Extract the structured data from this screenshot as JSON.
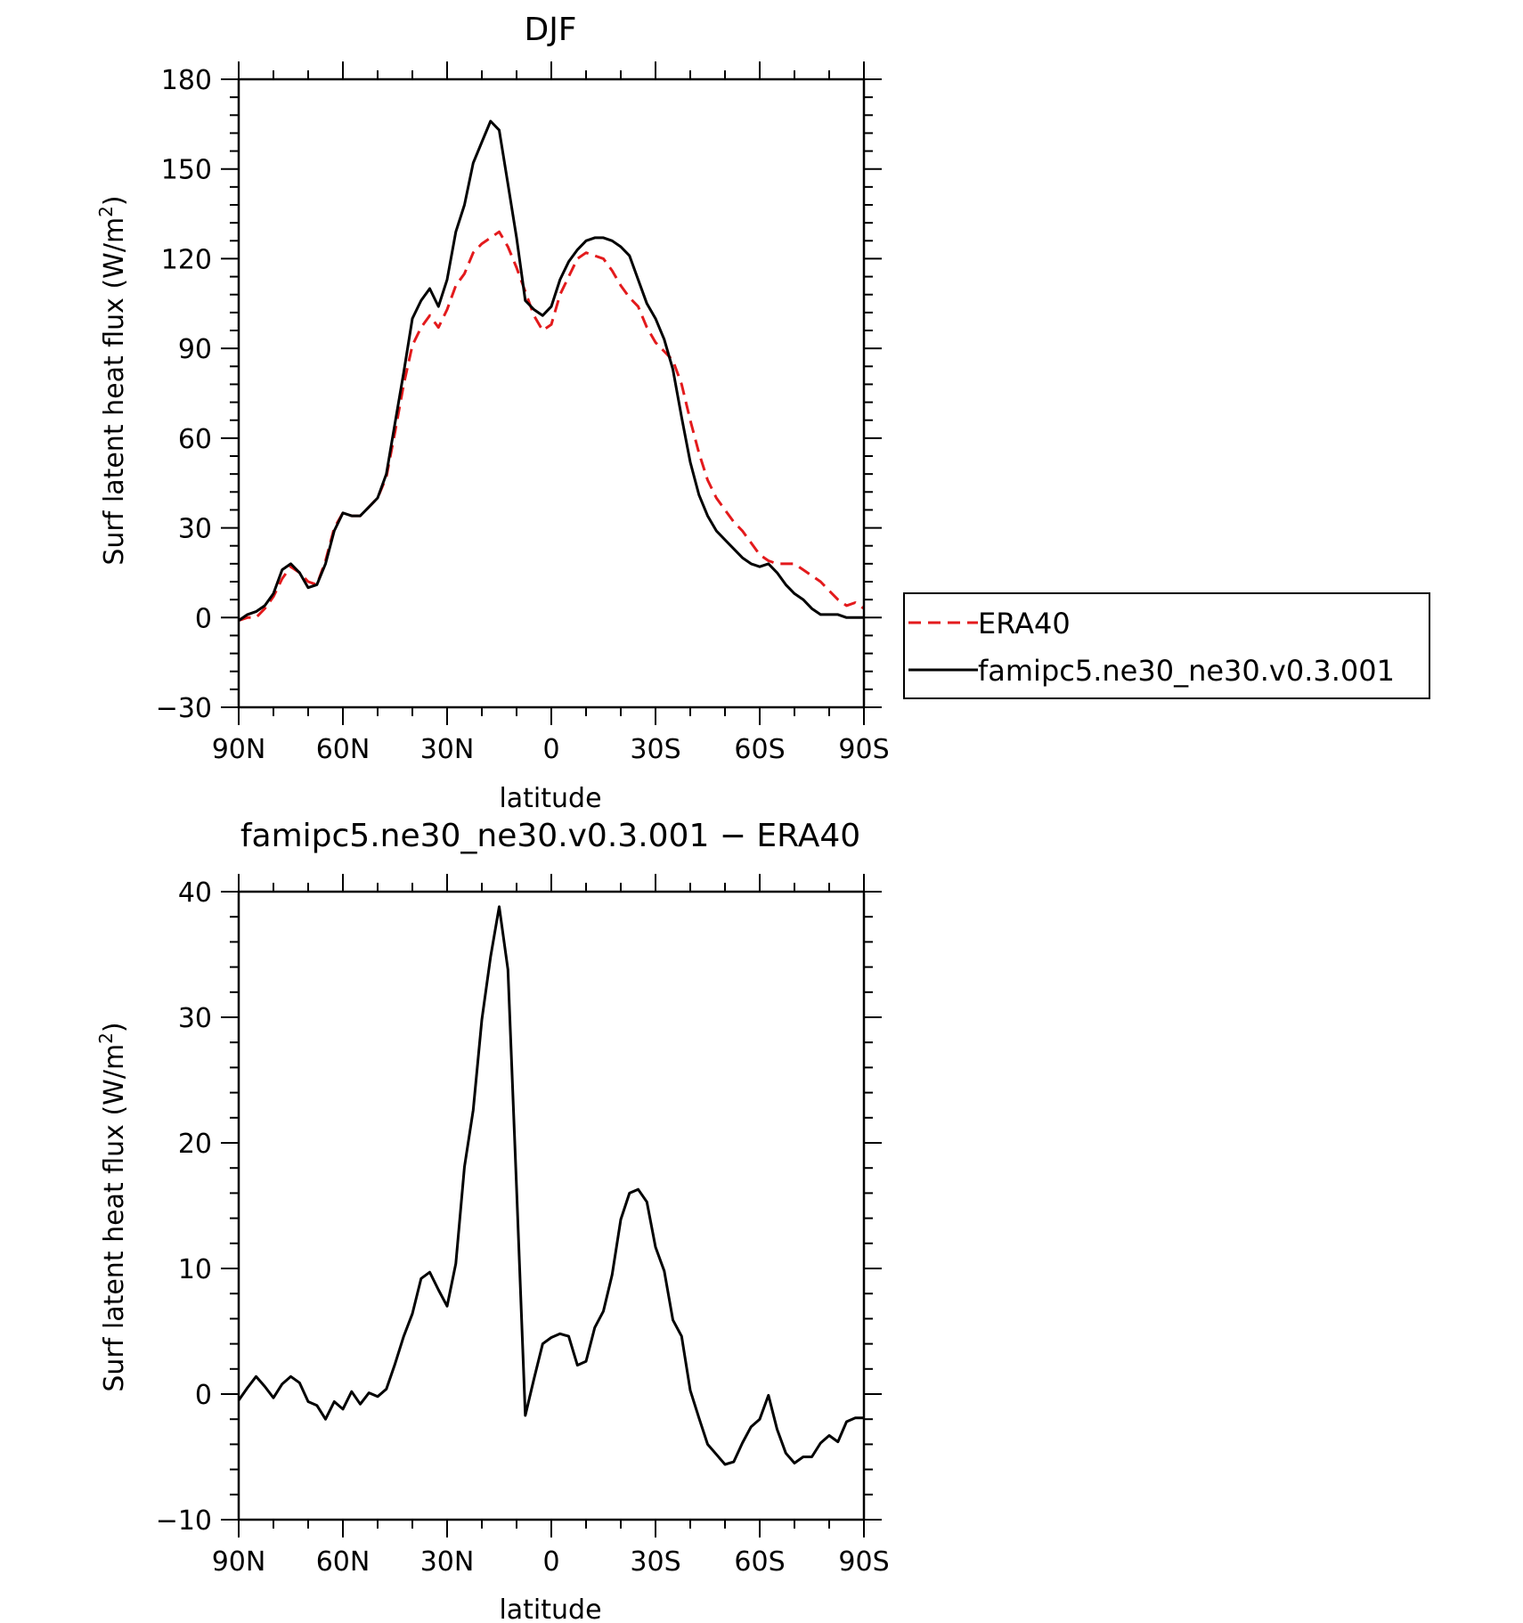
{
  "chart_data": [
    {
      "type": "line",
      "title": "DJF",
      "xlabel": "latitude",
      "ylabel": "Surf latent heat flux (W/m²)",
      "ylabel_parts": {
        "main": "Surf latent heat flux (W/m",
        "sup": "2",
        "tail": ")"
      },
      "xlim": [
        90,
        -90
      ],
      "ylim": [
        -30,
        180
      ],
      "x_ticks": [
        90,
        60,
        30,
        0,
        -30,
        -60,
        -90
      ],
      "x_tick_labels": [
        "90N",
        "60N",
        "30N",
        "0",
        "30S",
        "60S",
        "90S"
      ],
      "y_ticks": [
        -30,
        0,
        30,
        60,
        90,
        120,
        150,
        180
      ],
      "y_tick_labels": [
        "−30",
        "0",
        "30",
        "60",
        "90",
        "120",
        "150",
        "180"
      ],
      "legend": {
        "position": "right"
      },
      "series": [
        {
          "name": "ERA40",
          "color": "#e31a1c",
          "dash": "dashed",
          "x": [
            90,
            87.5,
            85,
            82.5,
            80,
            77.5,
            75,
            72.5,
            70,
            67.5,
            65,
            62.5,
            60,
            57.5,
            55,
            52.5,
            50,
            47.5,
            45,
            42.5,
            40,
            37.5,
            35,
            32.5,
            30,
            27.5,
            25,
            22.5,
            20,
            17.5,
            15,
            12.5,
            10,
            7.5,
            5,
            2.5,
            0,
            -2.5,
            -5,
            -7.5,
            -10,
            -12.5,
            -15,
            -17.5,
            -20,
            -22.5,
            -25,
            -27.5,
            -30,
            -32.5,
            -35,
            -37.5,
            -40,
            -42.5,
            -45,
            -47.5,
            -50,
            -52.5,
            -55,
            -57.5,
            -60,
            -62.5,
            -65,
            -67.5,
            -70,
            -72.5,
            -75,
            -77.5,
            -80,
            -82.5,
            -85,
            -87.5,
            -90
          ],
          "y": [
            -1,
            0,
            0,
            3,
            7,
            13,
            17,
            15,
            12,
            11,
            19,
            30,
            35,
            34,
            34,
            37,
            40,
            47,
            62,
            78,
            91,
            97,
            101,
            97,
            103,
            111,
            115,
            122,
            125,
            127,
            129,
            124,
            117,
            109,
            101,
            96,
            98,
            108,
            114,
            120,
            122,
            121,
            120,
            116,
            111,
            107,
            104,
            97,
            92,
            89,
            86,
            78,
            66,
            55,
            46,
            40,
            36,
            32,
            29,
            25,
            21,
            19,
            18,
            18,
            18,
            16,
            14,
            12,
            9,
            6,
            4,
            5,
            3
          ]
        },
        {
          "name": "famipc5.ne30_ne30.v0.3.001",
          "color": "#000000",
          "dash": "solid",
          "x": [
            90,
            87.5,
            85,
            82.5,
            80,
            77.5,
            75,
            72.5,
            70,
            67.5,
            65,
            62.5,
            60,
            57.5,
            55,
            52.5,
            50,
            47.5,
            45,
            42.5,
            40,
            37.5,
            35,
            32.5,
            30,
            27.5,
            25,
            22.5,
            20,
            17.5,
            15,
            12.5,
            10,
            7.5,
            5,
            2.5,
            0,
            -2.5,
            -5,
            -7.5,
            -10,
            -12.5,
            -15,
            -17.5,
            -20,
            -22.5,
            -25,
            -27.5,
            -30,
            -32.5,
            -35,
            -37.5,
            -40,
            -42.5,
            -45,
            -47.5,
            -50,
            -52.5,
            -55,
            -57.5,
            -60,
            -62.5,
            -65,
            -67.5,
            -70,
            -72.5,
            -75,
            -77.5,
            -80,
            -82.5,
            -85,
            -87.5,
            -90
          ],
          "y": [
            -1,
            1,
            2,
            4,
            8,
            16,
            18,
            15,
            10,
            11,
            18,
            29,
            35,
            34,
            34,
            37,
            40,
            48,
            65,
            82,
            100,
            106,
            110,
            104,
            113,
            129,
            138,
            152,
            159,
            166,
            163,
            145,
            127,
            106,
            103,
            101,
            104,
            113,
            119,
            123,
            126,
            127,
            127,
            126,
            124,
            121,
            113,
            105,
            100,
            93,
            83,
            67,
            52,
            41,
            34,
            29,
            26,
            23,
            20,
            18,
            17,
            18,
            15,
            11,
            8,
            6,
            3,
            1,
            1,
            1,
            0,
            0,
            0
          ]
        }
      ]
    },
    {
      "type": "line",
      "title": "famipc5.ne30_ne30.v0.3.001 − ERA40",
      "xlabel": "latitude",
      "ylabel": "Surf latent heat flux (W/m²)",
      "ylabel_parts": {
        "main": "Surf latent heat flux (W/m",
        "sup": "2",
        "tail": ")"
      },
      "xlim": [
        90,
        -90
      ],
      "ylim": [
        -10,
        40
      ],
      "x_ticks": [
        90,
        60,
        30,
        0,
        -30,
        -60,
        -90
      ],
      "x_tick_labels": [
        "90N",
        "60N",
        "30N",
        "0",
        "30S",
        "60S",
        "90S"
      ],
      "y_ticks": [
        -10,
        0,
        10,
        20,
        30,
        40
      ],
      "y_tick_labels": [
        "−10",
        "0",
        "10",
        "20",
        "30",
        "40"
      ],
      "series": [
        {
          "color": "#000000",
          "dash": "solid",
          "x": [
            90,
            87.5,
            85,
            82.5,
            80,
            77.5,
            75,
            72.5,
            70,
            67.5,
            65,
            62.5,
            60,
            57.5,
            55,
            52.5,
            50,
            47.5,
            45,
            42.5,
            40,
            37.5,
            35,
            32.5,
            30,
            27.5,
            25,
            22.5,
            20,
            17.5,
            15,
            12.5,
            10,
            7.5,
            5,
            2.5,
            0,
            -2.5,
            -5,
            -7.5,
            -10,
            -12.5,
            -15,
            -17.5,
            -20,
            -22.5,
            -25,
            -27.5,
            -30,
            -32.5,
            -35,
            -37.5,
            -40,
            -42.5,
            -45,
            -47.5,
            -50,
            -52.5,
            -55,
            -57.5,
            -60,
            -62.5,
            -65,
            -67.5,
            -70,
            -72.5,
            -75,
            -77.5,
            -80,
            -82.5,
            -85,
            -87.5,
            -90
          ],
          "y": [
            -0.5,
            0.5,
            1.4,
            0.6,
            -0.3,
            0.8,
            1.4,
            0.9,
            -0.6,
            -0.9,
            -2.0,
            -0.6,
            -1.2,
            0.2,
            -0.8,
            0.1,
            -0.2,
            0.4,
            2.4,
            4.6,
            6.4,
            9.2,
            9.7,
            8.3,
            7.0,
            10.4,
            18.1,
            22.6,
            29.8,
            34.8,
            38.8,
            33.8,
            16.4,
            -1.7,
            1.2,
            4.0,
            4.5,
            4.8,
            4.6,
            2.3,
            2.6,
            5.3,
            6.6,
            9.5,
            13.9,
            16.0,
            16.3,
            15.3,
            11.7,
            9.8,
            5.9,
            4.6,
            0.3,
            -1.9,
            -4.0,
            -4.8,
            -5.6,
            -5.4,
            -3.9,
            -2.6,
            -2.0,
            -0.1,
            -2.8,
            -4.7,
            -5.5,
            -5.0,
            -5.0,
            -3.9,
            -3.3,
            -3.8,
            -2.2,
            -1.9,
            -1.9
          ]
        }
      ]
    }
  ]
}
